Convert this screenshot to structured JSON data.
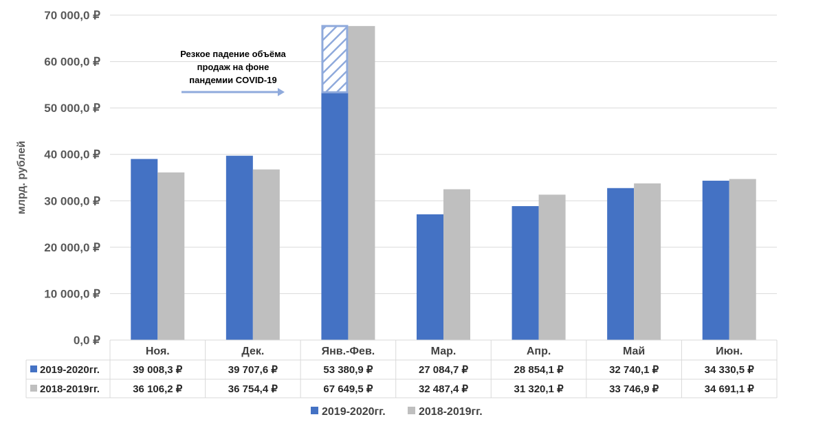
{
  "chart_data": {
    "type": "bar",
    "ylabel": "млрд. рублей",
    "ylim": [
      0,
      70000
    ],
    "y_ticks": [
      "0,0 ₽",
      "10 000,0 ₽",
      "20 000,0 ₽",
      "30 000,0 ₽",
      "40 000,0 ₽",
      "50 000,0 ₽",
      "60 000,0 ₽",
      "70 000,0 ₽"
    ],
    "y_tick_values": [
      0,
      10000,
      20000,
      30000,
      40000,
      50000,
      60000,
      70000
    ],
    "grid": true,
    "categories": [
      "Ноя.",
      "Дек.",
      "Янв.-Фев.",
      "Мар.",
      "Апр.",
      "Май",
      "Июн."
    ],
    "series": [
      {
        "name": "2019-2020гг.",
        "color": "#4472C4",
        "values": [
          39008.3,
          39707.6,
          53380.9,
          27084.7,
          28854.1,
          32740.1,
          34330.5
        ],
        "labels": [
          "39 008,3 ₽",
          "39 707,6 ₽",
          "53 380,9 ₽",
          "27 084,7 ₽",
          "28 854,1 ₽",
          "32 740,1 ₽",
          "34 330,5 ₽"
        ]
      },
      {
        "name": "2018-2019гг.",
        "color": "#BFBFBF",
        "values": [
          36106.2,
          36754.4,
          67649.5,
          32487.4,
          31320.1,
          33746.9,
          34691.1
        ],
        "labels": [
          "36 106,2 ₽",
          "36 754,4 ₽",
          "67 649,5 ₽",
          "32 487,4 ₽",
          "31 320,1 ₽",
          "33 746,9 ₽",
          "34 691,1 ₽"
        ]
      }
    ],
    "annotation": {
      "lines": [
        "Резкое падение объёма",
        "продаж на фоне",
        "пандемии COVID-19"
      ],
      "arrow_color": "#8FAADC",
      "gap_category": "Янв.-Фев.",
      "gap_from": 53380.9,
      "gap_to": 67649.5
    },
    "legend_position": "bottom"
  }
}
